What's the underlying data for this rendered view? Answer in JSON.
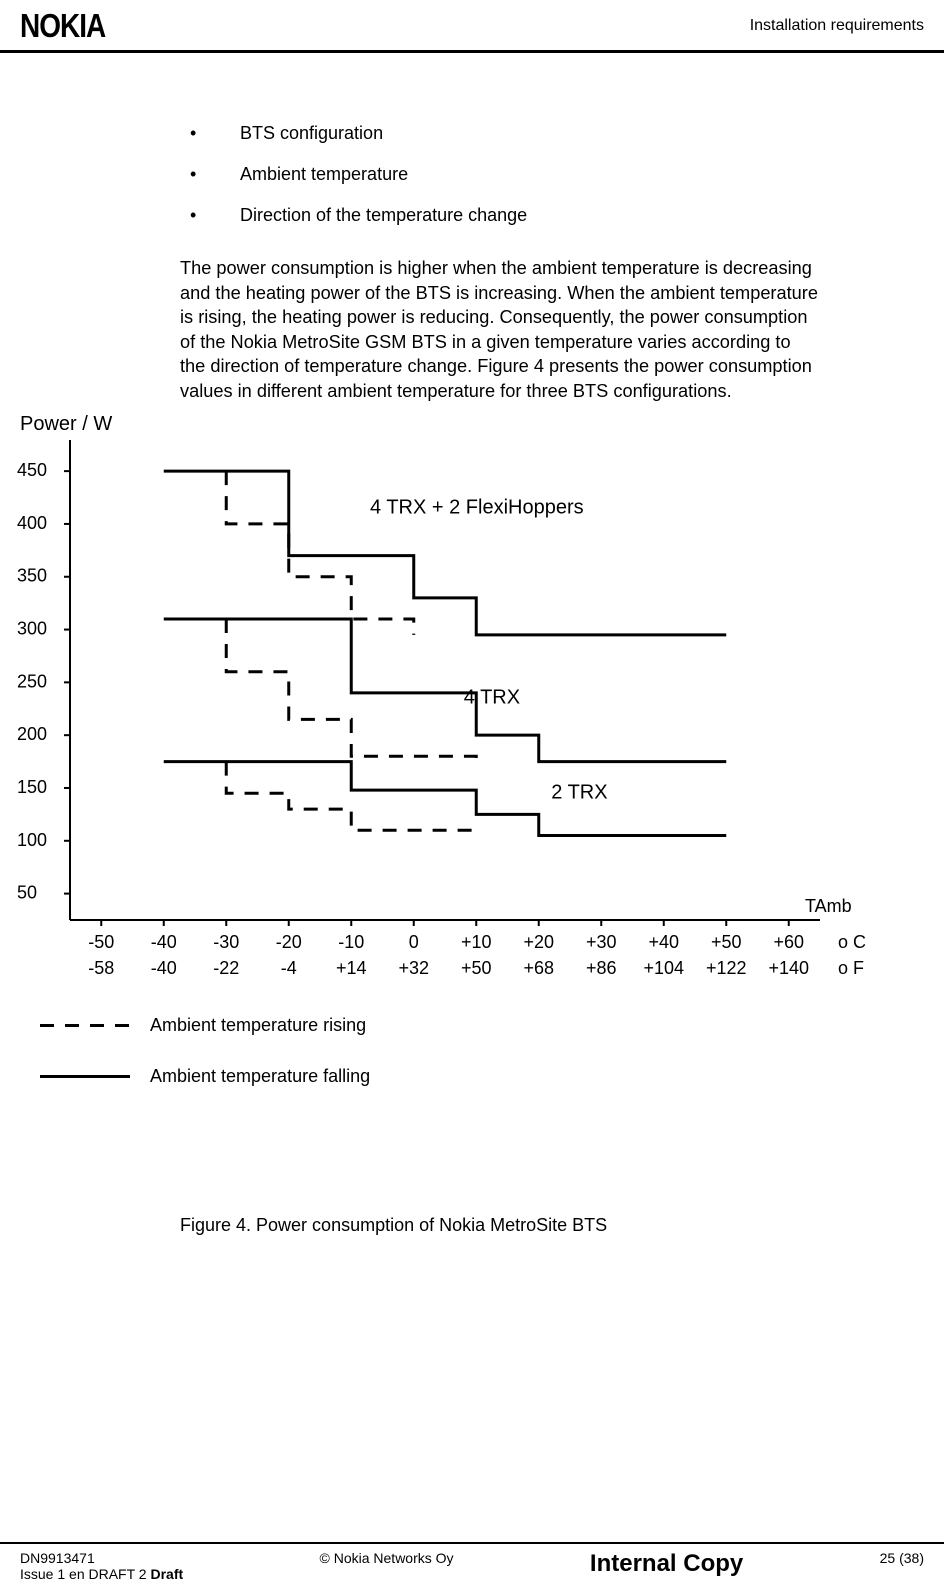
{
  "header": {
    "logo": "NOKIA",
    "title": "Installation requirements"
  },
  "bullets": [
    "BTS configuration",
    "Ambient temperature",
    "Direction of the temperature change"
  ],
  "paragraph": "The power consumption is higher when the ambient temperature is decreasing and the heating power of the BTS is increasing. When the ambient temperature is rising, the heating power is reducing. Consequently, the power consumption of the Nokia MetroSite GSM BTS in a given temperature varies according to the direction of temperature change. Figure 4 presents the power consumption values in different ambient temperature for three BTS configurations.",
  "chart": {
    "y_axis_label": "Power / W",
    "x_axis_label": "TAmb",
    "y_ticks": [
      50,
      100,
      150,
      200,
      250,
      300,
      350,
      400,
      450
    ],
    "x_ticks_c": [
      "-50",
      "-40",
      "-30",
      "-20",
      "-10",
      "0",
      "+10",
      "+20",
      "+30",
      "+40",
      "+50",
      "+60"
    ],
    "x_ticks_f": [
      "-58",
      "-40",
      "-22",
      "-4",
      "+14",
      "+32",
      "+50",
      "+68",
      "+86",
      "+104",
      "+122",
      "+140"
    ],
    "unit_c": "o C",
    "unit_f": "o F",
    "series_labels": {
      "top": "4 TRX + 2 FlexiHoppers",
      "mid": "4 TRX",
      "bot": "2 TRX"
    },
    "series": {
      "top_solid": [
        {
          "x": -40,
          "y": 450
        },
        {
          "x": -20,
          "y": 450
        },
        {
          "x": -20,
          "y": 370
        },
        {
          "x": 0,
          "y": 370
        },
        {
          "x": 0,
          "y": 330
        },
        {
          "x": 10,
          "y": 330
        },
        {
          "x": 10,
          "y": 295
        },
        {
          "x": 50,
          "y": 295
        }
      ],
      "top_dashed": [
        {
          "x": -30,
          "y": 450
        },
        {
          "x": -30,
          "y": 400
        },
        {
          "x": -20,
          "y": 400
        },
        {
          "x": -20,
          "y": 350
        },
        {
          "x": -10,
          "y": 350
        },
        {
          "x": -10,
          "y": 310
        },
        {
          "x": 0,
          "y": 310
        },
        {
          "x": 0,
          "y": 295
        }
      ],
      "mid_solid": [
        {
          "x": -40,
          "y": 310
        },
        {
          "x": -10,
          "y": 310
        },
        {
          "x": -10,
          "y": 240
        },
        {
          "x": 10,
          "y": 240
        },
        {
          "x": 10,
          "y": 200
        },
        {
          "x": 20,
          "y": 200
        },
        {
          "x": 20,
          "y": 175
        },
        {
          "x": 50,
          "y": 175
        }
      ],
      "mid_dashed": [
        {
          "x": -30,
          "y": 310
        },
        {
          "x": -30,
          "y": 260
        },
        {
          "x": -20,
          "y": 260
        },
        {
          "x": -20,
          "y": 215
        },
        {
          "x": -10,
          "y": 215
        },
        {
          "x": -10,
          "y": 180
        },
        {
          "x": 10,
          "y": 180
        },
        {
          "x": 10,
          "y": 175
        }
      ],
      "bot_solid": [
        {
          "x": -40,
          "y": 175
        },
        {
          "x": -10,
          "y": 175
        },
        {
          "x": -10,
          "y": 148
        },
        {
          "x": 10,
          "y": 148
        },
        {
          "x": 10,
          "y": 125
        },
        {
          "x": 20,
          "y": 125
        },
        {
          "x": 20,
          "y": 105
        },
        {
          "x": 50,
          "y": 105
        }
      ],
      "bot_dashed": [
        {
          "x": -30,
          "y": 175
        },
        {
          "x": -30,
          "y": 145
        },
        {
          "x": -20,
          "y": 145
        },
        {
          "x": -20,
          "y": 130
        },
        {
          "x": -10,
          "y": 130
        },
        {
          "x": -10,
          "y": 110
        },
        {
          "x": 10,
          "y": 110
        },
        {
          "x": 10,
          "y": 105
        }
      ]
    },
    "colors": {
      "line": "#000000",
      "background": "#ffffff"
    },
    "line_width_solid": 3,
    "line_width_dashed": 3,
    "dash_pattern": "14 11"
  },
  "legend": {
    "rising": "Ambient temperature rising",
    "falling": "Ambient temperature falling"
  },
  "figure_caption": "Figure 4.    Power consumption of Nokia MetroSite BTS",
  "footer": {
    "doc_id": "DN9913471",
    "issue": "Issue 1 en DRAFT 2",
    "draft_label": " Draft",
    "copyright": "© Nokia Networks Oy",
    "classification": "Internal Copy",
    "page": "25 (38)"
  }
}
